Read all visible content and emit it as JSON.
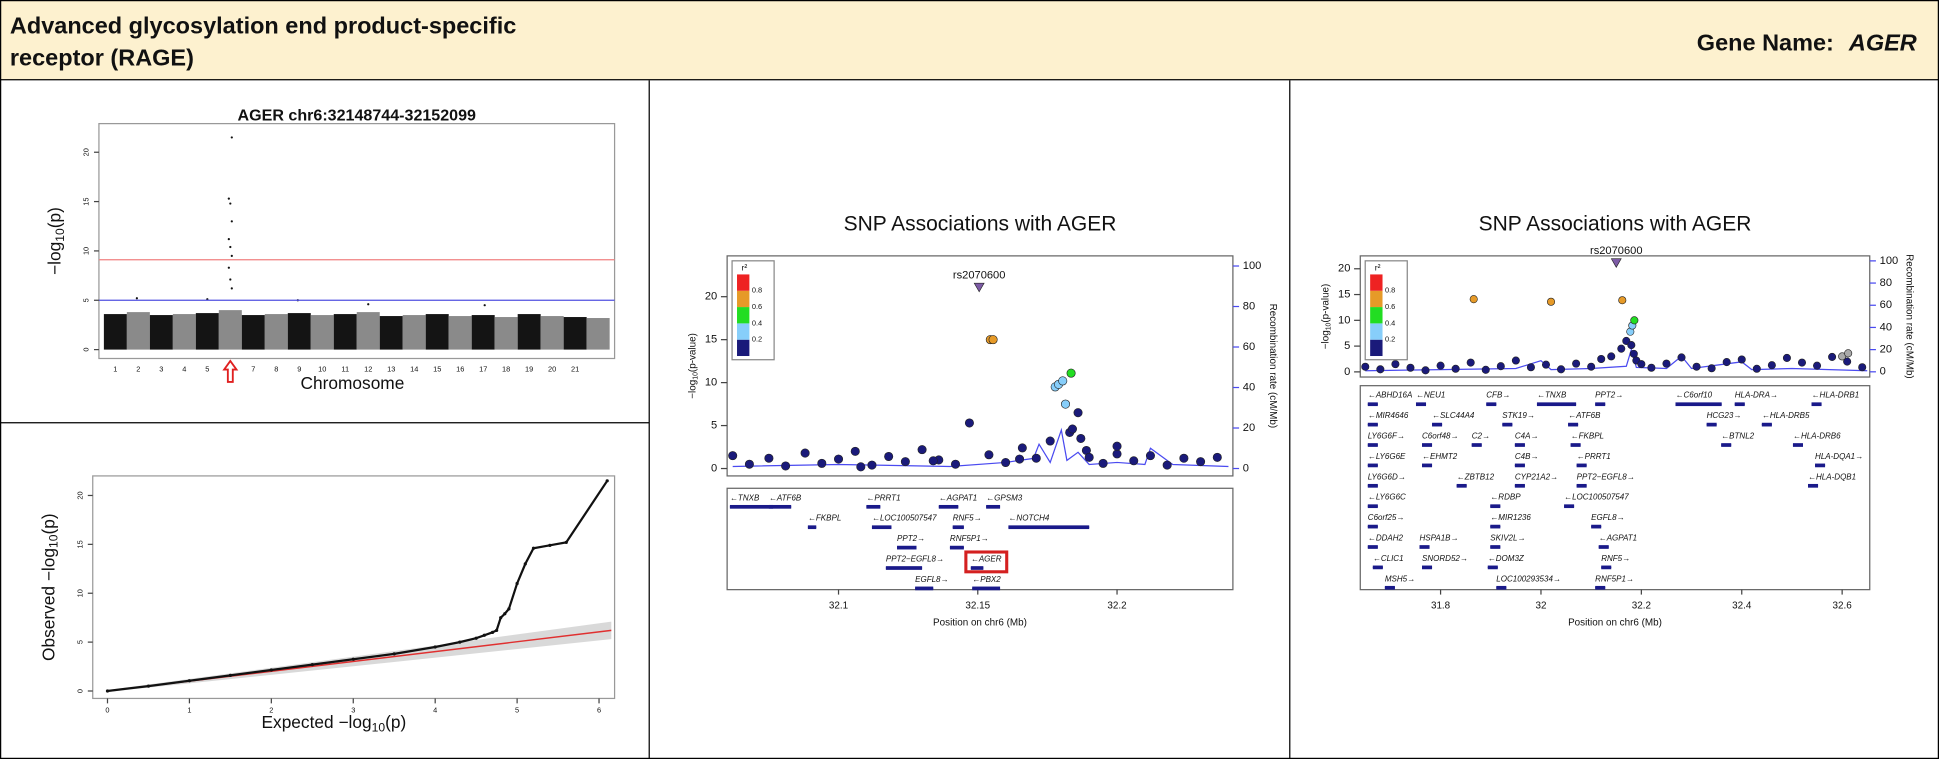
{
  "header": {
    "title": [
      "Advanced glycosylation end product-specific",
      "receptor (RAGE)"
    ],
    "gene_label": "Gene Name:",
    "gene": "AGER"
  },
  "manhattan": {
    "type": "manhattan",
    "title": "AGER chr6:32148744-32152099",
    "xlabel": "Chromosome",
    "ylabel": [
      "−log",
      "10",
      "(p)"
    ],
    "categories": [
      "1",
      "2",
      "3",
      "4",
      "5",
      "6",
      "7",
      "8",
      "9",
      "10",
      "11",
      "12",
      "13",
      "14",
      "15",
      "16",
      "17",
      "18",
      "19",
      "20",
      "21",
      null
    ],
    "values": [
      3.6,
      3.8,
      3.5,
      3.6,
      3.7,
      4,
      3.5,
      3.6,
      3.7,
      3.5,
      3.6,
      3.8,
      3.4,
      3.5,
      3.6,
      3.4,
      3.5,
      3.3,
      3.6,
      3.4,
      3.3,
      3.2
    ],
    "peaks": {
      "categories": [
        "2",
        "5",
        "6",
        "6",
        "6",
        "6",
        "6",
        "6",
        "6",
        "6",
        "6",
        "6",
        "9",
        "12",
        "17"
      ],
      "values": [
        5.2,
        5.1,
        21.5,
        15.3,
        14.8,
        13,
        11.2,
        10.4,
        9.5,
        8.3,
        7.1,
        6.2,
        5.0,
        4.6,
        4.5
      ]
    },
    "lines": [
      {
        "value": 9.1,
        "color": "#f08080"
      },
      {
        "value": 5,
        "color": "#5050e0"
      }
    ],
    "highlight": "6",
    "ylim": [
      -0.9,
      22.9
    ],
    "yticks": [
      0,
      5,
      10,
      15,
      20
    ]
  },
  "qq": {
    "type": "scatter",
    "xlabel": [
      "Expected  −log",
      "10",
      "(p)"
    ],
    "ylabel": [
      "Observed  −log",
      "10",
      "(p)"
    ],
    "x": [
      0,
      0.5,
      1,
      1.5,
      2,
      2.5,
      3,
      3.5,
      4,
      4.3,
      4.5,
      4.6,
      4.7,
      4.75,
      4.8,
      4.85,
      4.9,
      5.0,
      5.1,
      5.2,
      5.4,
      5.6,
      6.1
    ],
    "values": [
      0,
      0.5,
      1.05,
      1.6,
      2.15,
      2.7,
      3.25,
      3.8,
      4.5,
      5,
      5.4,
      5.7,
      6,
      6.2,
      7.5,
      7.9,
      8.4,
      11,
      13,
      14.6,
      14.9,
      15.2,
      21.5
    ],
    "reference_line": {
      "x": [
        0,
        6.15
      ],
      "values": [
        0,
        6.2
      ],
      "color": "#e03030"
    },
    "xlim": [
      -0.18,
      6.19
    ],
    "ylim": [
      -0.76,
      22.0
    ],
    "xticks": [
      0,
      1,
      2,
      3,
      4,
      5,
      6
    ],
    "yticks": [
      0,
      5,
      10,
      15,
      20
    ]
  },
  "locus": [
    {
      "type": "scatter",
      "title": "SNP Associations with AGER",
      "lead_label": "rs2070600",
      "ylabel": [
        "−log",
        "10",
        "(p-value)"
      ],
      "y2label": "Recombination rate (cM/Mb)",
      "xlabel": "Position on chr6 (Mb)",
      "legend": {
        "label": "r²",
        "ticks": [
          0.2,
          0.4,
          0.6,
          0.8
        ],
        "colors": [
          "#1a1a7a",
          "#87cefa",
          "#22dd22",
          "#e69a28",
          "#ee2222"
        ]
      },
      "series": [
        {
          "color": "#1a1a7a",
          "x": [
            32.062,
            32.068,
            32.075,
            32.081,
            32.088,
            32.094,
            32.1,
            32.106,
            32.112,
            32.118,
            32.124,
            32.13,
            32.136,
            32.142,
            32.147,
            32.154,
            32.16,
            32.166,
            32.171,
            32.176,
            32.183,
            32.184,
            32.186,
            32.187,
            32.189,
            32.19,
            32.195,
            32.2,
            32.206,
            32.212,
            32.218,
            32.224,
            32.23,
            32.236,
            32.108,
            32.134,
            32.165,
            32.2
          ],
          "values": [
            1.5,
            0.5,
            1.2,
            0.3,
            1.8,
            0.6,
            1.1,
            2.0,
            0.4,
            1.4,
            0.8,
            2.2,
            1.0,
            0.5,
            5.3,
            1.6,
            0.7,
            2.4,
            1.2,
            3.2,
            4.2,
            4.6,
            6.5,
            3.5,
            2.1,
            1.3,
            0.6,
            1.7,
            0.9,
            1.5,
            0.4,
            1.2,
            0.8,
            1.3,
            0.2,
            0.9,
            1.1,
            2.6
          ]
        },
        {
          "color": "#87cefa",
          "x": [
            32.1778,
            32.179,
            32.1805,
            32.1815
          ],
          "values": [
            9.5,
            9.8,
            10.2,
            7.5
          ]
        },
        {
          "color": "#22dd22",
          "x": [
            32.1835
          ],
          "values": [
            11.1
          ]
        },
        {
          "color": "#e69a28",
          "x": [
            32.1545,
            32.1555
          ],
          "values": [
            15,
            15
          ]
        },
        {
          "color": "#7d5ba6",
          "shape": "triangle",
          "x": [
            32.1505
          ],
          "values": [
            21
          ]
        }
      ],
      "recombination": {
        "color": "#4a4af0",
        "x": [
          32.062,
          32.1,
          32.14,
          32.16,
          32.17,
          32.172,
          32.176,
          32.18,
          32.182,
          32.186,
          32.19,
          32.2,
          32.21,
          32.212,
          32.22,
          32.24
        ],
        "values": [
          1,
          2,
          1,
          3,
          5,
          12,
          3,
          19,
          4,
          8,
          2,
          3,
          2,
          10,
          2,
          1
        ]
      },
      "genes": [
        {
          "name": "←TNXB",
          "start": 32.061,
          "end": 32.0765
        },
        {
          "name": "←ATF6B",
          "start": 32.075,
          "end": 32.083
        },
        {
          "name": "←PRRT1",
          "start": 32.11,
          "end": 32.115
        },
        {
          "name": "←AGPAT1",
          "start": 32.136,
          "end": 32.143
        },
        {
          "name": "←GPSM3",
          "start": 32.153,
          "end": 32.158
        },
        {
          "name": "←FKBPL",
          "start": 32.089,
          "end": 32.092
        },
        {
          "name": "←LOC100507547",
          "start": 32.112,
          "end": 32.119
        },
        {
          "name": "RNF5→",
          "start": 32.141,
          "end": 32.145
        },
        {
          "name": "←NOTCH4",
          "start": 32.161,
          "end": 32.19
        },
        {
          "name": "PPT2→",
          "start": 32.121,
          "end": 32.128
        },
        {
          "name": "RNF5P1→",
          "start": 32.14,
          "end": 32.145
        },
        {
          "name": "PPT2−EGFL8→",
          "start": 32.117,
          "end": 32.13
        },
        {
          "name": "←AGER",
          "start": 32.1475,
          "end": 32.152,
          "highlight": true
        },
        {
          "name": "EGFL8→",
          "start": 32.1275,
          "end": 32.134
        },
        {
          "name": "←PBX2",
          "start": 32.148,
          "end": 32.158
        }
      ],
      "xlim": [
        32.06,
        32.2416
      ],
      "ylim": [
        -0.86,
        24.75
      ],
      "y2lim": [
        -3.66,
        105
      ],
      "xticks": [
        32.1,
        32.15,
        32.2
      ],
      "yticks": [
        0,
        5,
        10,
        15,
        20
      ],
      "y2ticks": [
        0,
        20,
        40,
        60,
        80,
        100
      ]
    },
    {
      "type": "scatter",
      "title": "SNP Associations with AGER",
      "lead_label": "rs2070600",
      "ylabel": [
        "−log",
        "10",
        "(p-value)"
      ],
      "y2label": "Recombination rate (cM/Mb)",
      "xlabel": "Position on chr6 (Mb)",
      "legend": {
        "label": "r²",
        "ticks": [
          0.2,
          0.4,
          0.6,
          0.8
        ],
        "colors": [
          "#1a1a7a",
          "#87cefa",
          "#22dd22",
          "#e69a28",
          "#ee2222"
        ]
      },
      "series": [
        {
          "color": "#1a1a7a",
          "x": [
            31.65,
            31.68,
            31.71,
            31.74,
            31.77,
            31.8,
            31.83,
            31.86,
            31.89,
            31.92,
            31.95,
            31.98,
            32.01,
            32.04,
            32.07,
            32.1,
            32.12,
            32.14,
            32.16,
            32.17,
            32.18,
            32.185,
            32.19,
            32.2,
            32.22,
            32.25,
            32.28,
            32.31,
            32.34,
            32.37,
            32.4,
            32.43,
            32.46,
            32.49,
            32.52,
            32.55,
            32.58,
            32.61,
            32.64
          ],
          "values": [
            1,
            0.5,
            1.5,
            0.8,
            0.3,
            1.2,
            0.6,
            1.8,
            0.4,
            1.1,
            2.2,
            0.9,
            1.4,
            0.5,
            1.6,
            1,
            2.5,
            3,
            4.5,
            6,
            5.2,
            3.5,
            2.2,
            1.5,
            0.8,
            1.6,
            2.8,
            1,
            0.7,
            1.9,
            2.4,
            0.6,
            1.3,
            2.7,
            1.8,
            1.2,
            2.9,
            2.0,
            0.9
          ]
        },
        {
          "color": "#87cefa",
          "x": [
            32.178,
            32.182
          ],
          "values": [
            7.8,
            9
          ]
        },
        {
          "color": "#22dd22",
          "x": [
            32.186
          ],
          "values": [
            10
          ]
        },
        {
          "color": "#e69a28",
          "x": [
            31.866,
            32.02,
            32.162
          ],
          "values": [
            14.1,
            13.6,
            13.9
          ]
        },
        {
          "color": "#aaaaaa",
          "x": [
            32.6,
            32.612
          ],
          "values": [
            3,
            3.6
          ]
        },
        {
          "color": "#7d5ba6",
          "shape": "triangle",
          "x": [
            32.15
          ],
          "values": [
            21
          ]
        }
      ],
      "recombination": {
        "color": "#4a4af0",
        "x": [
          31.65,
          31.8,
          31.95,
          32.0,
          32.02,
          32.1,
          32.17,
          32.18,
          32.19,
          32.25,
          32.28,
          32.3,
          32.4,
          32.42,
          32.5,
          32.65
        ],
        "values": [
          1,
          2,
          3,
          10,
          2,
          3,
          5,
          20,
          4,
          3,
          14,
          3,
          9,
          2,
          3,
          1
        ]
      },
      "genes": [
        {
          "name": "←ABHD16A",
          "start": 31.655,
          "end": 31.675
        },
        {
          "name": "←NEU1",
          "start": 31.751,
          "end": 31.771
        },
        {
          "name": "CFB→",
          "start": 31.891,
          "end": 31.911
        },
        {
          "name": "←TNXB",
          "start": 31.992,
          "end": 32.07
        },
        {
          "name": "PPT2→",
          "start": 32.108,
          "end": 32.128
        },
        {
          "name": "←C6orf10",
          "start": 32.268,
          "end": 32.36
        },
        {
          "name": "HLA-DRA→",
          "start": 32.386,
          "end": 32.406
        },
        {
          "name": "←HLA-DRB1",
          "start": 32.539,
          "end": 32.559
        },
        {
          "name": "←MIR4646",
          "start": 31.655,
          "end": 31.675
        },
        {
          "name": "←SLC44A4",
          "start": 31.783,
          "end": 31.803
        },
        {
          "name": "STK19→",
          "start": 31.923,
          "end": 31.943
        },
        {
          "name": "←ATF6B",
          "start": 32.054,
          "end": 32.074
        },
        {
          "name": "HCG23→",
          "start": 32.33,
          "end": 32.35
        },
        {
          "name": "←HLA-DRB5",
          "start": 32.44,
          "end": 32.46
        },
        {
          "name": "LY6G6F→",
          "start": 31.655,
          "end": 31.675
        },
        {
          "name": "C6orf48→",
          "start": 31.763,
          "end": 31.783
        },
        {
          "name": "C2→",
          "start": 31.862,
          "end": 31.882
        },
        {
          "name": "C4A→",
          "start": 31.948,
          "end": 31.968
        },
        {
          "name": "←FKBPL",
          "start": 32.059,
          "end": 32.079
        },
        {
          "name": "←BTNL2",
          "start": 32.359,
          "end": 32.379
        },
        {
          "name": "←HLA-DRB6",
          "start": 32.502,
          "end": 32.522
        },
        {
          "name": "←LY6G6E",
          "start": 31.655,
          "end": 31.675
        },
        {
          "name": "←EHMT2",
          "start": 31.763,
          "end": 31.783
        },
        {
          "name": "C4B→",
          "start": 31.948,
          "end": 31.968
        },
        {
          "name": "←PRRT1",
          "start": 32.071,
          "end": 32.091
        },
        {
          "name": "HLA-DQA1→",
          "start": 32.546,
          "end": 32.566
        },
        {
          "name": "LY6G6D→",
          "start": 31.655,
          "end": 31.675
        },
        {
          "name": "←ZBTB12",
          "start": 31.832,
          "end": 31.852
        },
        {
          "name": "CYP21A2→",
          "start": 31.948,
          "end": 31.968
        },
        {
          "name": "PPT2−EGFL8→",
          "start": 32.071,
          "end": 32.091
        },
        {
          "name": "←HLA-DQB1",
          "start": 32.532,
          "end": 32.552
        },
        {
          "name": "←LY6G6C",
          "start": 31.655,
          "end": 31.675
        },
        {
          "name": "←RDBP",
          "start": 31.899,
          "end": 31.919
        },
        {
          "name": "←LOC100507547",
          "start": 32.046,
          "end": 32.066
        },
        {
          "name": "C6orf25→",
          "start": 31.655,
          "end": 31.675
        },
        {
          "name": "←MIR1236",
          "start": 31.899,
          "end": 31.919
        },
        {
          "name": "EGFL8→",
          "start": 32.1,
          "end": 32.12
        },
        {
          "name": "←DDAH2",
          "start": 31.655,
          "end": 31.675
        },
        {
          "name": "HSPA1B→",
          "start": 31.758,
          "end": 31.778
        },
        {
          "name": "SKIV2L→",
          "start": 31.899,
          "end": 31.919
        },
        {
          "name": "←AGPAT1",
          "start": 32.115,
          "end": 32.135
        },
        {
          "name": "←CLIC1",
          "start": 31.665,
          "end": 31.685
        },
        {
          "name": "SNORD52→",
          "start": 31.763,
          "end": 31.783
        },
        {
          "name": "←DOM3Z",
          "start": 31.894,
          "end": 31.914
        },
        {
          "name": "RNF5→",
          "start": 32.12,
          "end": 32.14
        },
        {
          "name": "MSH5→",
          "start": 31.689,
          "end": 31.709
        },
        {
          "name": "LOC100293534→",
          "start": 31.911,
          "end": 31.931
        },
        {
          "name": "RNF5P1→",
          "start": 32.108,
          "end": 32.128
        }
      ],
      "xlim": [
        31.64,
        32.655
      ],
      "ylim": [
        -1,
        22.5
      ],
      "y2lim": [
        -4.7,
        104.5
      ],
      "xticks": [
        31.8,
        32,
        32.2,
        32.4,
        32.6
      ],
      "yticks": [
        0,
        5,
        10,
        15,
        20
      ],
      "y2ticks": [
        0,
        20,
        40,
        60,
        80,
        100
      ]
    }
  ]
}
